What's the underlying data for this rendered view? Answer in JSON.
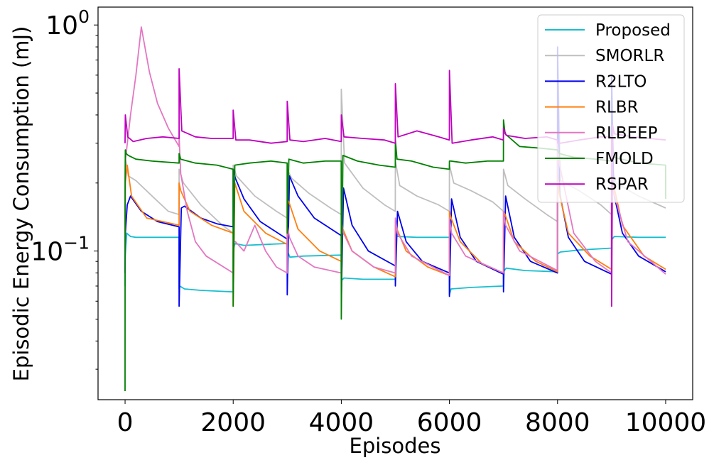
{
  "chart_data": {
    "type": "line",
    "title": "",
    "xlabel": "Episodes",
    "ylabel": "Episodic Energy Consumption (mJ)",
    "yscale": "log",
    "xlim": [
      -500,
      10500
    ],
    "ylim": [
      0.022,
      1.2
    ],
    "x_ticks": [
      0,
      2000,
      4000,
      6000,
      8000,
      10000
    ],
    "x_tick_labels": [
      "0",
      "2000",
      "4000",
      "6000",
      "8000",
      "10000"
    ],
    "y_ticks": [
      {
        "value": 0.1,
        "base": "10",
        "exp": "−1"
      },
      {
        "value": 1,
        "base": "10",
        "exp": "0"
      }
    ],
    "grid": false,
    "legend_position": "top-right",
    "series": [
      {
        "name": "Proposed",
        "color": "#17becf",
        "x": [
          0,
          2,
          30,
          100,
          200,
          999,
          1000,
          1010,
          1100,
          1400,
          1999,
          2000,
          2030,
          2200,
          2600,
          2999,
          3000,
          3050,
          3300,
          3999,
          4000,
          4050,
          4400,
          4999,
          5000,
          5050,
          5400,
          5999,
          6000,
          6030,
          6400,
          6999,
          7000,
          7050,
          7400,
          7999,
          8000,
          8050,
          8400,
          8999,
          9000,
          9050,
          9500,
          10000
        ],
        "y": [
          0.07,
          0.095,
          0.12,
          0.116,
          0.115,
          0.115,
          0.068,
          0.07,
          0.068,
          0.067,
          0.066,
          0.1,
          0.108,
          0.106,
          0.107,
          0.108,
          0.1,
          0.094,
          0.095,
          0.096,
          0.074,
          0.076,
          0.075,
          0.075,
          0.118,
          0.116,
          0.115,
          0.115,
          0.064,
          0.068,
          0.069,
          0.07,
          0.081,
          0.084,
          0.082,
          0.081,
          0.097,
          0.099,
          0.101,
          0.103,
          0.112,
          0.116,
          0.115,
          0.115
        ]
      },
      {
        "name": "SMORLR",
        "color": "#bfbfbf",
        "x": [
          0,
          5,
          60,
          200,
          500,
          800,
          999,
          1000,
          1080,
          1400,
          1800,
          1999,
          2000,
          2060,
          2400,
          2800,
          2999,
          3000,
          3080,
          3400,
          3800,
          3999,
          4000,
          4060,
          4400,
          4800,
          4999,
          5000,
          5080,
          5400,
          5800,
          5999,
          6000,
          6080,
          6400,
          6800,
          6999,
          7000,
          7080,
          7400,
          7800,
          7999,
          8000,
          8060,
          8400,
          8800,
          8999,
          9000,
          9080,
          9500,
          10000
        ],
        "y": [
          0.14,
          0.26,
          0.215,
          0.205,
          0.175,
          0.15,
          0.145,
          0.23,
          0.2,
          0.16,
          0.13,
          0.12,
          0.24,
          0.215,
          0.175,
          0.15,
          0.14,
          0.23,
          0.21,
          0.18,
          0.155,
          0.145,
          0.52,
          0.245,
          0.19,
          0.16,
          0.15,
          0.25,
          0.195,
          0.175,
          0.16,
          0.15,
          0.24,
          0.2,
          0.185,
          0.165,
          0.15,
          0.23,
          0.195,
          0.17,
          0.145,
          0.135,
          0.79,
          0.205,
          0.185,
          0.16,
          0.145,
          0.24,
          0.2,
          0.175,
          0.155
        ]
      },
      {
        "name": "R2LTO",
        "color": "#0000ee",
        "x": [
          0,
          5,
          40,
          100,
          300,
          600,
          999,
          1000,
          1040,
          1100,
          1400,
          1700,
          1999,
          2000,
          2040,
          2200,
          2500,
          2999,
          3000,
          3040,
          3200,
          3500,
          3999,
          4000,
          4040,
          4200,
          4500,
          4999,
          5000,
          5040,
          5200,
          5500,
          5999,
          6000,
          6040,
          6200,
          6500,
          6999,
          7000,
          7040,
          7200,
          7500,
          7999,
          8000,
          8040,
          8200,
          8500,
          8999,
          9000,
          9040,
          9200,
          9500,
          10000
        ],
        "y": [
          0.08,
          0.12,
          0.16,
          0.175,
          0.15,
          0.135,
          0.128,
          0.057,
          0.155,
          0.158,
          0.14,
          0.132,
          0.128,
          0.23,
          0.21,
          0.17,
          0.135,
          0.113,
          0.064,
          0.215,
          0.175,
          0.14,
          0.117,
          0.06,
          0.19,
          0.13,
          0.1,
          0.086,
          0.07,
          0.15,
          0.11,
          0.09,
          0.08,
          0.063,
          0.17,
          0.115,
          0.09,
          0.079,
          0.066,
          0.175,
          0.115,
          0.09,
          0.08,
          0.8,
          0.18,
          0.115,
          0.09,
          0.079,
          0.6,
          0.18,
          0.12,
          0.095,
          0.081
        ]
      },
      {
        "name": "RLBR",
        "color": "#ff7f0e",
        "x": [
          0,
          5,
          40,
          120,
          400,
          999,
          1000,
          1030,
          1200,
          1600,
          1999,
          2000,
          2030,
          2200,
          2600,
          2999,
          3000,
          3030,
          3200,
          3600,
          3999,
          4000,
          4030,
          4200,
          4600,
          4999,
          5000,
          5030,
          5200,
          5600,
          5999,
          6000,
          6030,
          6200,
          6600,
          6999,
          7000,
          7030,
          7200,
          7600,
          7999,
          8000,
          8030,
          8200,
          8600,
          8999,
          9000,
          9030,
          9200,
          9600,
          10000
        ],
        "y": [
          0.12,
          0.2,
          0.24,
          0.175,
          0.14,
          0.13,
          0.2,
          0.185,
          0.15,
          0.13,
          0.12,
          0.057,
          0.2,
          0.15,
          0.12,
          0.107,
          0.17,
          0.165,
          0.125,
          0.1,
          0.09,
          0.13,
          0.125,
          0.1,
          0.085,
          0.077,
          0.13,
          0.125,
          0.1,
          0.085,
          0.078,
          0.15,
          0.14,
          0.11,
          0.088,
          0.08,
          0.15,
          0.145,
          0.11,
          0.09,
          0.081,
          0.23,
          0.18,
          0.12,
          0.095,
          0.083,
          0.23,
          0.2,
          0.13,
          0.095,
          0.083
        ]
      },
      {
        "name": "RLBEEP",
        "color": "#e377c2",
        "x": [
          0,
          5,
          100,
          200,
          300,
          450,
          600,
          800,
          999,
          1000,
          1030,
          1150,
          1300,
          1500,
          1999,
          2000,
          2040,
          2200,
          2400,
          2600,
          2800,
          2999,
          3000,
          3040,
          3200,
          3500,
          3999,
          4000,
          4040,
          4200,
          4600,
          4999,
          5000,
          5040,
          5300,
          5999,
          6000,
          6040,
          6300,
          6999,
          7000,
          7040,
          7300,
          7999,
          8000,
          8040,
          8300,
          8700,
          8999,
          9000,
          9040,
          9300,
          10000
        ],
        "y": [
          0.1,
          0.25,
          0.4,
          0.6,
          0.98,
          0.62,
          0.45,
          0.35,
          0.29,
          0.32,
          0.22,
          0.15,
          0.11,
          0.095,
          0.08,
          0.11,
          0.11,
          0.1,
          0.13,
          0.1,
          0.085,
          0.08,
          0.13,
          0.115,
          0.095,
          0.085,
          0.08,
          0.14,
          0.12,
          0.1,
          0.085,
          0.08,
          0.14,
          0.12,
          0.095,
          0.078,
          0.14,
          0.12,
          0.095,
          0.08,
          0.15,
          0.13,
          0.1,
          0.082,
          0.3,
          0.24,
          0.12,
          0.09,
          0.08,
          0.25,
          0.18,
          0.11,
          0.079
        ]
      },
      {
        "name": "FMOLD",
        "color": "#008000",
        "x": [
          0,
          1,
          5,
          20,
          60,
          200,
          500,
          999,
          1000,
          1030,
          1300,
          1700,
          1999,
          2000,
          2030,
          2300,
          2700,
          2999,
          3000,
          3030,
          3300,
          3700,
          3999,
          4000,
          4030,
          4300,
          4700,
          4999,
          5000,
          5030,
          5300,
          5700,
          5999,
          6000,
          6030,
          6300,
          6700,
          6999,
          7000,
          7030,
          7300,
          7700,
          7999,
          8000,
          8030,
          8300,
          8700,
          8999,
          9000,
          9030,
          9500,
          9999,
          10000
        ],
        "y": [
          0.024,
          0.2,
          0.28,
          0.27,
          0.265,
          0.255,
          0.25,
          0.245,
          0.27,
          0.255,
          0.245,
          0.24,
          0.23,
          0.057,
          0.24,
          0.245,
          0.25,
          0.245,
          0.12,
          0.255,
          0.245,
          0.25,
          0.25,
          0.05,
          0.265,
          0.25,
          0.24,
          0.235,
          0.31,
          0.255,
          0.25,
          0.235,
          0.23,
          0.25,
          0.25,
          0.245,
          0.25,
          0.25,
          0.38,
          0.33,
          0.29,
          0.285,
          0.28,
          0.28,
          0.27,
          0.26,
          0.255,
          0.25,
          0.29,
          0.26,
          0.245,
          0.24,
          0.17
        ]
      },
      {
        "name": "RSPAR",
        "color": "#bf00bf",
        "x": [
          0,
          5,
          50,
          150,
          400,
          700,
          999,
          1000,
          1050,
          1300,
          1600,
          1999,
          2000,
          2050,
          2300,
          2700,
          2999,
          3000,
          3050,
          3300,
          3700,
          3999,
          4000,
          4050,
          4400,
          4800,
          4999,
          5000,
          5050,
          5400,
          5800,
          5999,
          6000,
          6050,
          6400,
          6800,
          6999,
          7000,
          7050,
          7400,
          7800,
          7999,
          8000,
          8050,
          8400,
          8800,
          8999,
          9000,
          9020,
          9050,
          9400,
          10000
        ],
        "y": [
          0.3,
          0.4,
          0.32,
          0.305,
          0.315,
          0.32,
          0.315,
          0.64,
          0.34,
          0.32,
          0.315,
          0.315,
          0.42,
          0.31,
          0.31,
          0.3,
          0.305,
          0.46,
          0.31,
          0.305,
          0.315,
          0.305,
          0.4,
          0.32,
          0.315,
          0.31,
          0.3,
          0.55,
          0.32,
          0.34,
          0.32,
          0.31,
          0.63,
          0.3,
          0.31,
          0.32,
          0.31,
          0.35,
          0.325,
          0.315,
          0.32,
          0.31,
          0.3,
          0.3,
          0.31,
          0.32,
          0.32,
          0.057,
          0.36,
          0.33,
          0.32,
          0.31
        ]
      }
    ]
  }
}
